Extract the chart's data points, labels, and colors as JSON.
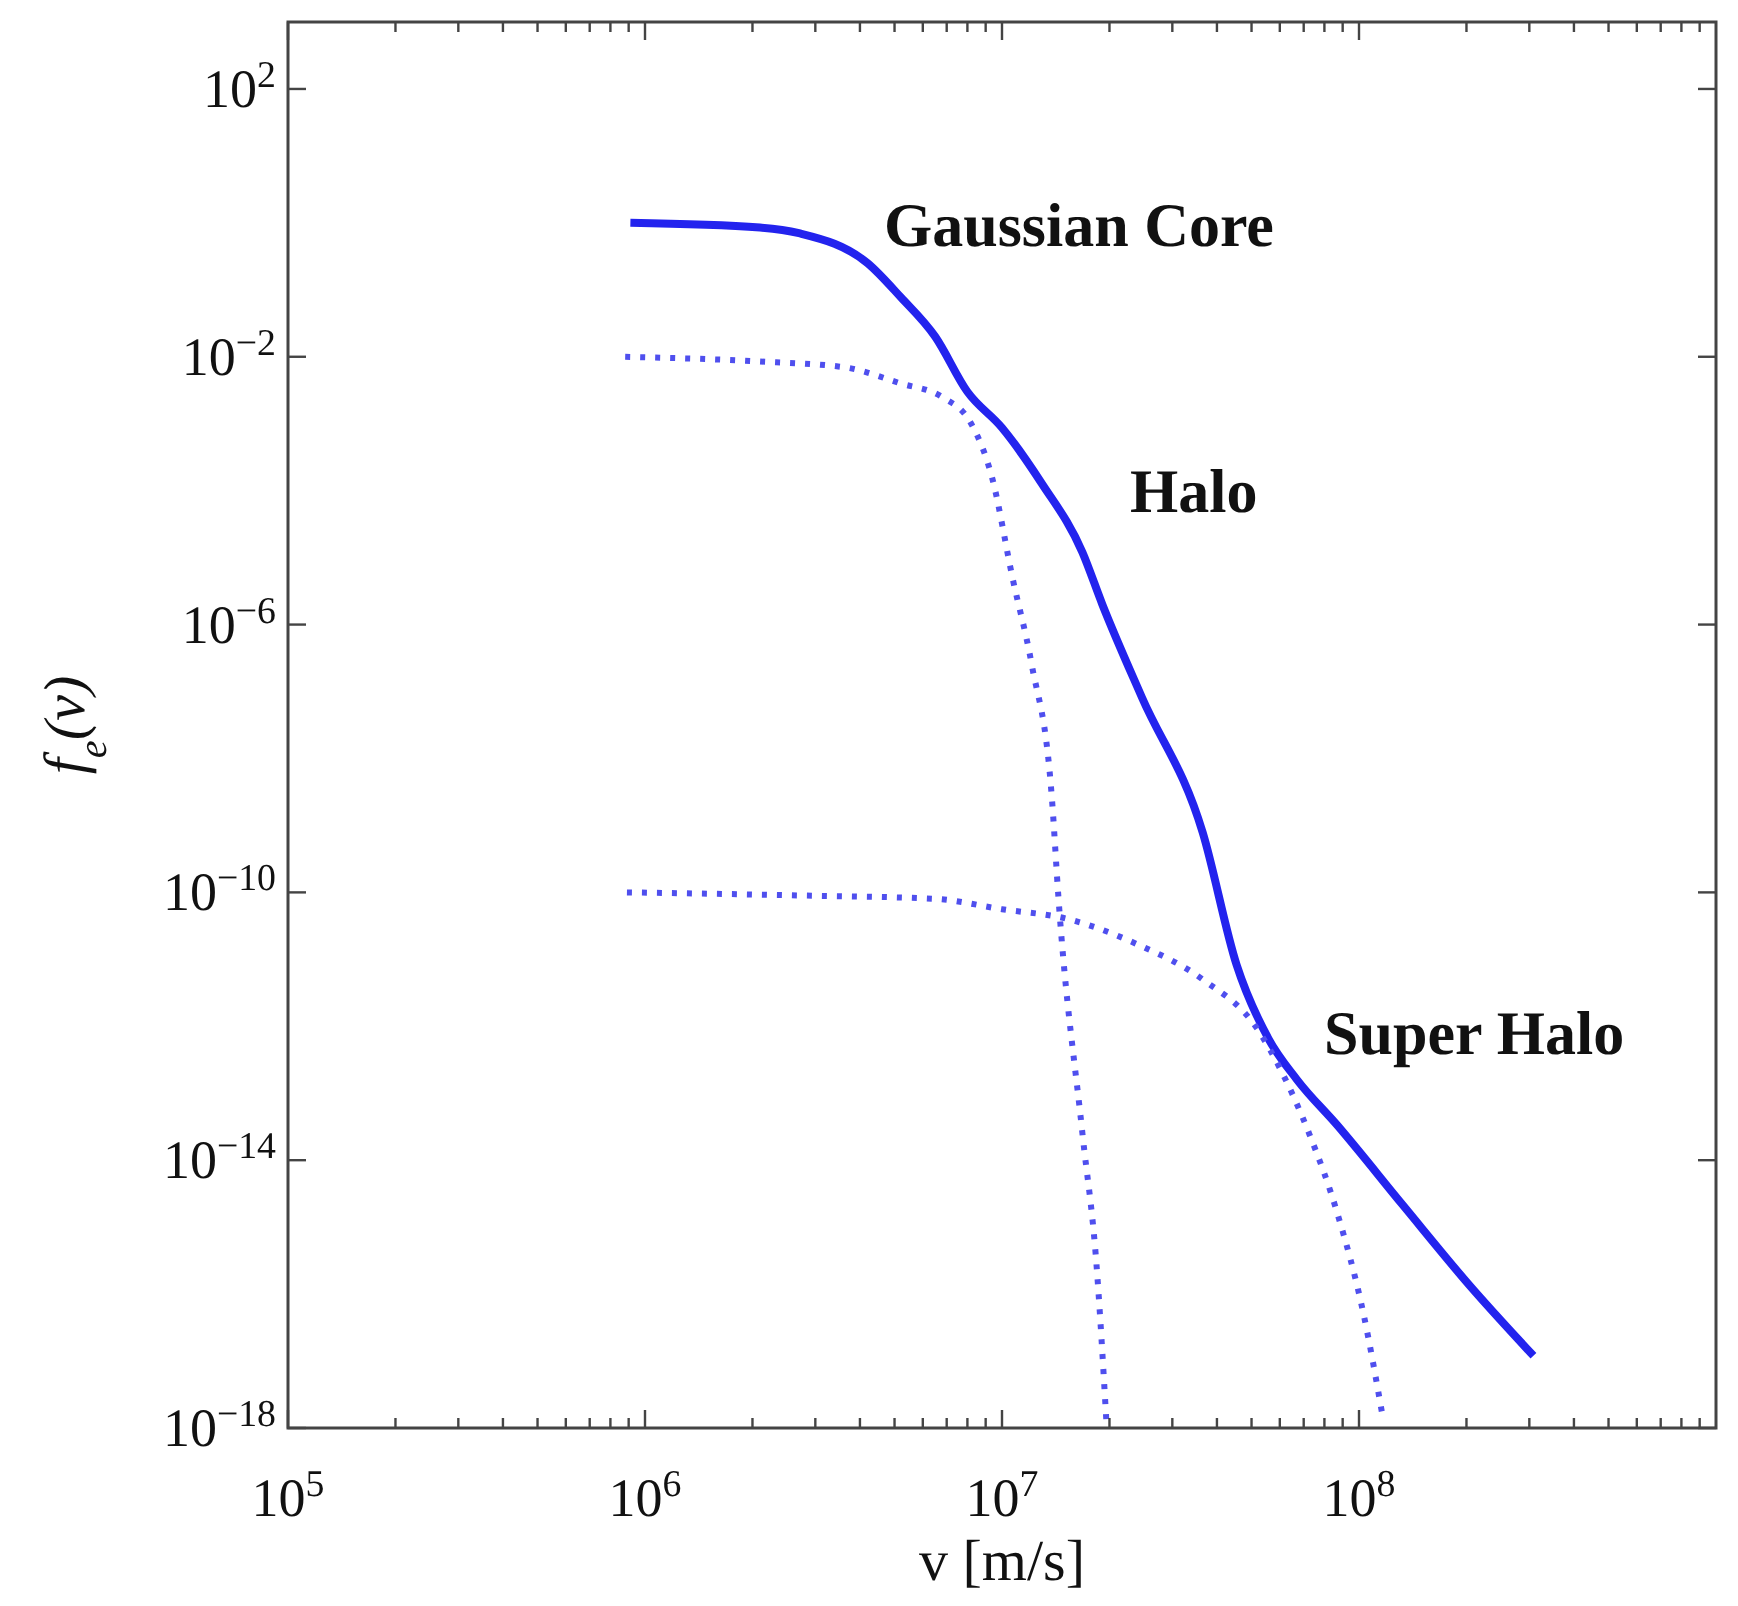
{
  "chart_data": {
    "type": "line",
    "xlabel": "v [m/s]",
    "ylabel": "f$_{e}$(v)",
    "log": "xy",
    "xlim": [
      100000,
      1000000000
    ],
    "ylim": [
      1e-18,
      1000
    ],
    "xticks": [
      {
        "value": 100000,
        "label": "10$^{5}$"
      },
      {
        "value": 200000,
        "label": null
      },
      {
        "value": 300000,
        "label": null
      },
      {
        "value": 400000,
        "label": null
      },
      {
        "value": 500000,
        "label": null
      },
      {
        "value": 600000,
        "label": null
      },
      {
        "value": 700000,
        "label": null
      },
      {
        "value": 800000,
        "label": null
      },
      {
        "value": 900000,
        "label": null
      },
      {
        "value": 1000000,
        "label": "10$^{6}$"
      },
      {
        "value": 2000000,
        "label": null
      },
      {
        "value": 3000000,
        "label": null
      },
      {
        "value": 4000000,
        "label": null
      },
      {
        "value": 5000000,
        "label": null
      },
      {
        "value": 6000000,
        "label": null
      },
      {
        "value": 7000000,
        "label": null
      },
      {
        "value": 8000000,
        "label": null
      },
      {
        "value": 9000000,
        "label": null
      },
      {
        "value": 10000000,
        "label": "10$^{7}$"
      },
      {
        "value": 20000000,
        "label": null
      },
      {
        "value": 30000000,
        "label": null
      },
      {
        "value": 40000000,
        "label": null
      },
      {
        "value": 50000000,
        "label": null
      },
      {
        "value": 60000000,
        "label": null
      },
      {
        "value": 70000000,
        "label": null
      },
      {
        "value": 80000000,
        "label": null
      },
      {
        "value": 90000000,
        "label": null
      },
      {
        "value": 100000000,
        "label": "10$^{8}$"
      },
      {
        "value": 200000000,
        "label": null
      },
      {
        "value": 300000000,
        "label": null
      },
      {
        "value": 400000000,
        "label": null
      },
      {
        "value": 500000000,
        "label": null
      },
      {
        "value": 600000000,
        "label": null
      },
      {
        "value": 700000000,
        "label": null
      },
      {
        "value": 800000000,
        "label": null
      },
      {
        "value": 900000000,
        "label": null
      }
    ],
    "yticks": [
      {
        "value": 1e-18,
        "label": "10$^{−18}$"
      },
      {
        "value": 1e-14,
        "label": "10$^{−14}$"
      },
      {
        "value": 1e-10,
        "label": "10$^{−10}$"
      },
      {
        "value": 1e-06,
        "label": "10$^{−6}$"
      },
      {
        "value": 0.01,
        "label": "10$^{−2}$"
      },
      {
        "value": 100,
        "label": "10$^{2}$"
      }
    ],
    "series": [
      {
        "color": "#2323ee",
        "line_style": "solid",
        "x": [
          910000,
          2100000,
          2700000,
          4200000,
          5200000,
          6500000,
          8000000,
          10000000,
          12900000,
          16800000,
          19100000,
          24700000,
          36500000,
          45400000,
          55800000,
          67000000,
          87000000,
          133000000,
          204000000,
          308000000
        ],
        "values": [
          1.0,
          0.85,
          0.7,
          0.25,
          0.078,
          0.02,
          0.003,
          0.00087,
          0.00013,
          1.2e-05,
          2e-06,
          8e-08,
          7.8e-10,
          8.3e-12,
          6.5e-13,
          1.6e-13,
          3.3e-14,
          2.1e-15,
          1.35e-16,
          1.2e-17
        ]
      },
      {
        "color": "#4f4fee",
        "line_style": "dotted",
        "x": [
          880000,
          2100000,
          3600000,
          5200000,
          6800000,
          8200000,
          9400000,
          10700000,
          12100000,
          13800000,
          14400000,
          16800000,
          18400000,
          19600000
        ],
        "values": [
          0.01,
          0.0085,
          0.007,
          0.004,
          0.0025,
          0.001,
          0.00015,
          5e-06,
          2.6e-07,
          2.5e-09,
          8e-11,
          2.5e-14,
          2.7e-16,
          1.3e-18
        ]
      },
      {
        "color": "#4f4fee",
        "line_style": "dotted",
        "x": [
          890000,
          2700000,
          6500000,
          10000000,
          15300000,
          23800000,
          36500000,
          52000000,
          61000000,
          72500000,
          87000000,
          103000000,
          117000000
        ],
        "values": [
          1e-10,
          9e-11,
          8e-11,
          5.6e-11,
          4e-11,
          1.7e-11,
          5e-12,
          9e-13,
          2e-13,
          2.5e-14,
          1.6e-15,
          5e-17,
          1.3e-18
        ]
      }
    ],
    "annotations": [
      "Gaussian Core",
      "Halo",
      "Super Halo"
    ]
  }
}
